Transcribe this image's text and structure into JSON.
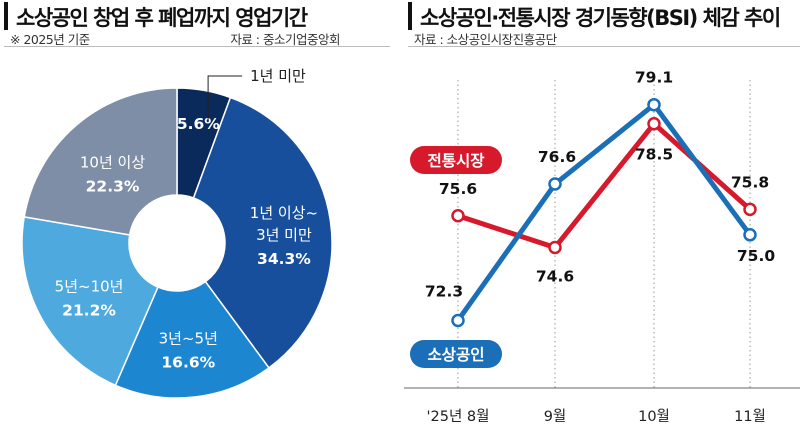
{
  "left": {
    "title": "소상공인 창업 후 폐업까지 영업기간",
    "note": "※ 2025년 기준",
    "source": "자료 : 중소기업중앙회"
  },
  "right": {
    "title": "소상공인·전통시장 경기동향(BSI) 체감 추이",
    "source": "자료 : 소상공인시장진흥공단"
  },
  "chart_data": [
    {
      "type": "pie",
      "donut": true,
      "slices": [
        {
          "label": "1년 미만",
          "value": 5.6,
          "value_text": "5.6%",
          "color": "#0b2a5c"
        },
        {
          "label": "1년 이상~3년 미만",
          "label_lines": [
            "1년 이상~",
            "3년 미만"
          ],
          "value": 34.3,
          "value_text": "34.3%",
          "color": "#174f9c"
        },
        {
          "label": "3년~5년",
          "label_lines": [
            "3년~5년"
          ],
          "value": 16.6,
          "value_text": "16.6%",
          "color": "#1c86d0"
        },
        {
          "label": "5년~10년",
          "label_lines": [
            "5년~10년"
          ],
          "value": 21.2,
          "value_text": "21.2%",
          "color": "#4eaade"
        },
        {
          "label": "10년 이상",
          "label_lines": [
            "10년 이상"
          ],
          "value": 22.3,
          "value_text": "22.3%",
          "color": "#7d8ea6"
        }
      ]
    },
    {
      "type": "line",
      "categories": [
        "'25년 8월",
        "9월",
        "10월",
        "11월"
      ],
      "series": [
        {
          "name": "전통시장",
          "values": [
            75.6,
            74.6,
            78.5,
            75.8
          ],
          "labels": [
            "75.6",
            "74.6",
            "78.5",
            "75.8"
          ],
          "color": "#d7192c"
        },
        {
          "name": "소상공인",
          "values": [
            72.3,
            76.6,
            79.1,
            75.0
          ],
          "labels": [
            "72.3",
            "76.6",
            "79.1",
            "75.0"
          ],
          "color": "#1a6fb8"
        }
      ],
      "grid": "vertical dotted lines at each month"
    }
  ]
}
